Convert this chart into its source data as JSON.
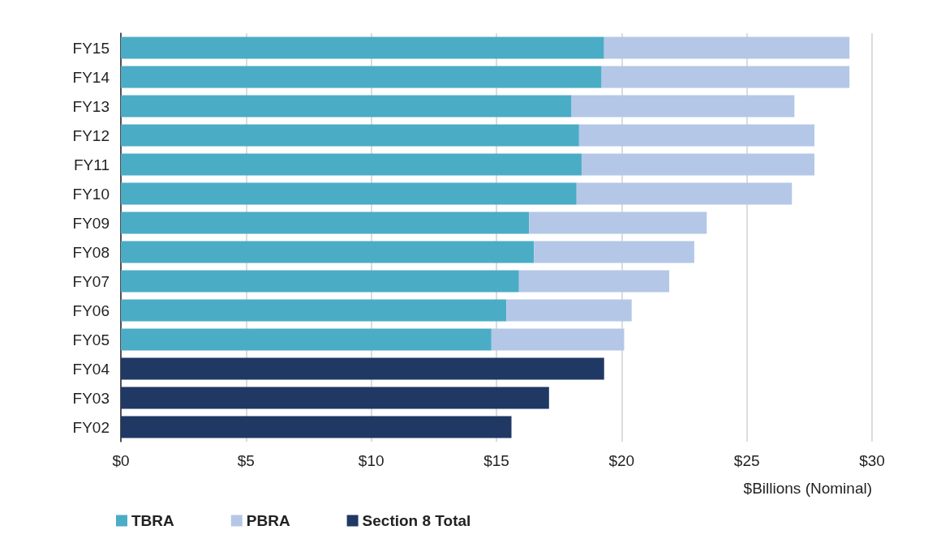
{
  "chart_data": {
    "type": "bar",
    "orientation": "horizontal",
    "stacked": true,
    "categories": [
      "FY15",
      "FY14",
      "FY13",
      "FY12",
      "FY11",
      "FY10",
      "FY09",
      "FY08",
      "FY07",
      "FY06",
      "FY05",
      "FY04",
      "FY03",
      "FY02"
    ],
    "series": [
      {
        "name": "TBRA",
        "color": "#4bacc6",
        "values": [
          19.3,
          19.2,
          18.0,
          18.3,
          18.4,
          18.2,
          16.3,
          16.5,
          15.9,
          15.4,
          14.8,
          null,
          null,
          null
        ]
      },
      {
        "name": "PBRA",
        "color": "#b4c7e7",
        "values": [
          9.8,
          9.9,
          8.9,
          9.4,
          9.3,
          8.6,
          7.1,
          6.4,
          6.0,
          5.0,
          5.3,
          null,
          null,
          null
        ]
      },
      {
        "name": "Section 8 Total",
        "color": "#203864",
        "values": [
          null,
          null,
          null,
          null,
          null,
          null,
          null,
          null,
          null,
          null,
          null,
          19.3,
          17.1,
          15.6
        ]
      }
    ],
    "xlim": [
      0,
      30
    ],
    "xticks": [
      {
        "value": 0,
        "label": "$0"
      },
      {
        "value": 5,
        "label": "$5"
      },
      {
        "value": 10,
        "label": "$10"
      },
      {
        "value": 15,
        "label": "$15"
      },
      {
        "value": 20,
        "label": "$20"
      },
      {
        "value": 25,
        "label": "$25"
      },
      {
        "value": 30,
        "label": "$30"
      }
    ],
    "xlabel": "$Billions (Nominal)",
    "grid": "x",
    "legend": "bottom left"
  }
}
